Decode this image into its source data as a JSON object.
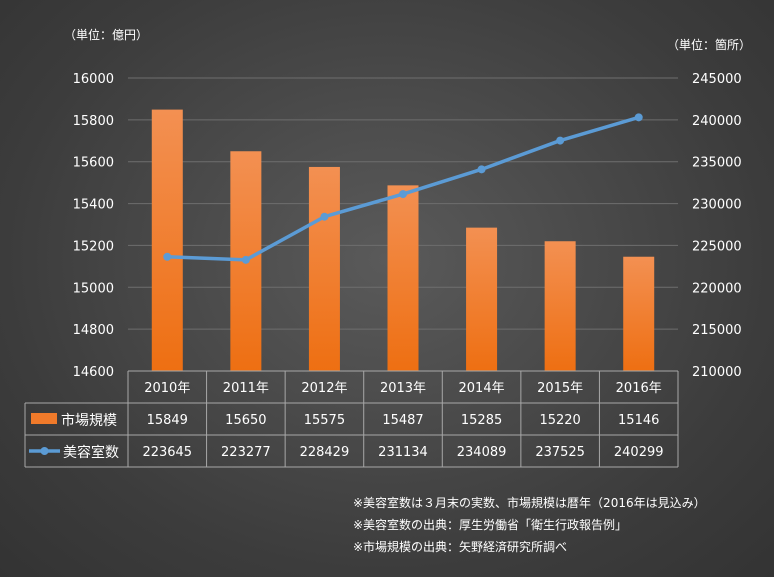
{
  "chart_data": {
    "type": "bar",
    "categories": [
      "2010年",
      "2011年",
      "2012年",
      "2013年",
      "2014年",
      "2015年",
      "2016年"
    ],
    "series": [
      {
        "name": "市場規模",
        "type": "bar",
        "axis": "left",
        "color": "#f07a2a",
        "values": [
          15849,
          15650,
          15575,
          15487,
          15285,
          15220,
          15146
        ]
      },
      {
        "name": "美容室数",
        "type": "line",
        "axis": "right",
        "color": "#5b9bd5",
        "values": [
          223645,
          223277,
          228429,
          231134,
          234089,
          237525,
          240299
        ]
      }
    ],
    "y_left": {
      "unit_label": "（単位：億円）",
      "range": [
        14600,
        16000
      ],
      "ticks": [
        14600,
        14800,
        15000,
        15200,
        15400,
        15600,
        15800,
        16000
      ]
    },
    "y_right": {
      "unit_label": "（単位：箇所）",
      "range": [
        210000,
        245000
      ],
      "ticks": [
        210000,
        215000,
        220000,
        225000,
        230000,
        235000,
        240000,
        245000
      ]
    },
    "grid": true,
    "legend": "data-table"
  },
  "notes": [
    "※美容室数は３月末の実数、市場規模は暦年（2016年は見込み）",
    "※美容室数の出典：厚生労働省「衛生行政報告例」",
    "※市場規模の出典：矢野経済研究所調べ"
  ]
}
